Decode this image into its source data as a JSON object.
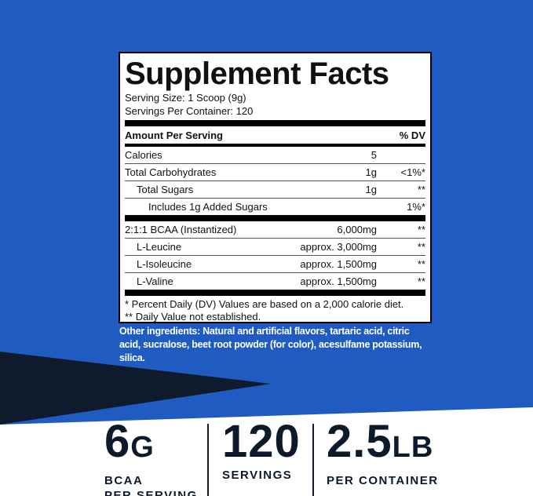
{
  "label": {
    "title": "Supplement Facts",
    "serving_size": "Serving Size: 1 Scoop (9g)",
    "servings_per_container": "Servings Per Container: 120",
    "amount_header": "Amount Per Serving",
    "dv_header": "% DV",
    "rows": [
      {
        "name": "Calories",
        "amount": "5"
      },
      {
        "name": "Total Carbohydrates",
        "amount": "1g",
        "dv": "<1%*"
      },
      {
        "name": "Total Sugars",
        "amount": "1g",
        "dv": "**"
      },
      {
        "name": "Includes 1g Added Sugars",
        "dv": "1%*"
      },
      {
        "name": "2:1:1 BCAA (Instantized)",
        "amount": "6,000mg",
        "dv": "**"
      },
      {
        "name": "L-Leucine",
        "amount": "approx. 3,000mg",
        "dv": "**"
      },
      {
        "name": "L-Isoleucine",
        "amount": "approx. 1,500mg",
        "dv": "**"
      },
      {
        "name": "L-Valine",
        "amount": "approx. 1,500mg",
        "dv": "**"
      }
    ],
    "footnotes": [
      "* Percent Daily (DV) Values are based on a 2,000 calorie diet.",
      "** Daily Value not established."
    ]
  },
  "other_ingredients": "Other ingredients: Natural and artificial flavors, tartaric acid, citric acid, sucralose, beet root powder (for color), acesulfame potassium, silica.",
  "stats": [
    {
      "value": "6",
      "unit": "G",
      "caption": [
        "BCAA",
        "PER SERVING"
      ]
    },
    {
      "value": "120",
      "caption": [
        "SERVINGS"
      ]
    },
    {
      "value": "2.5",
      "unit": "LB",
      "caption": [
        "PER CONTAINER"
      ]
    }
  ]
}
